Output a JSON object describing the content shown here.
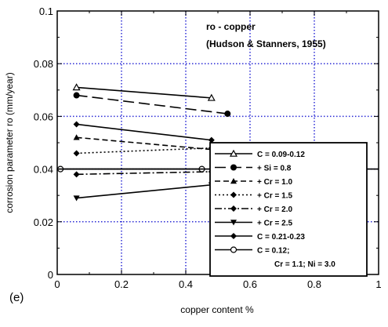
{
  "chart_data": {
    "type": "line",
    "panel_label": "(e)",
    "title_line1": "ro - copper",
    "title_line2": "(Hudson & Stanners, 1955)",
    "xlabel": "copper content %",
    "ylabel": "corrosion parameter ro (mm/year)",
    "xlim": [
      0,
      1
    ],
    "ylim": [
      0,
      0.1
    ],
    "x_ticks": [
      "0",
      "0.2",
      "0.4",
      "0.6",
      "0.8",
      "1"
    ],
    "y_ticks": [
      "0",
      "0.02",
      "0.04",
      "0.06",
      "0.08",
      "0.1"
    ],
    "grid": "dotted blue",
    "legend_position": "lower-right",
    "series": [
      {
        "name": "C = 0.09-0.12",
        "marker": "open-triangle",
        "dash": "solid",
        "x": [
          0.06,
          0.48
        ],
        "y": [
          0.071,
          0.067
        ]
      },
      {
        "name": "+Si = 0.8",
        "marker": "filled-circle",
        "dash": "longdash",
        "x": [
          0.06,
          0.53
        ],
        "y": [
          0.068,
          0.061
        ]
      },
      {
        "name": "+Cr = 1.0",
        "marker": "filled-triangle",
        "dash": "dash",
        "x": [
          0.06,
          0.52
        ],
        "y": [
          0.052,
          0.047
        ]
      },
      {
        "name": "+Cr = 1.5",
        "marker": "filled-diamond",
        "dash": "dot",
        "x": [
          0.06,
          0.48
        ],
        "y": [
          0.046,
          0.048
        ]
      },
      {
        "name": "+Cr = 2.0",
        "marker": "filled-diamond",
        "dash": "dashdot",
        "x": [
          0.06,
          0.48
        ],
        "y": [
          0.038,
          0.039
        ]
      },
      {
        "name": "+Cr = 2.5",
        "marker": "filled-down-triangle",
        "dash": "solid",
        "x": [
          0.06,
          0.48
        ],
        "y": [
          0.029,
          0.034
        ]
      },
      {
        "name": "C = 0.21-0.23",
        "marker": "filled-diamond",
        "dash": "solid",
        "x": [
          0.06,
          0.48
        ],
        "y": [
          0.057,
          0.051
        ]
      },
      {
        "name": "C = 0.12; Cr = 1.1; Ni = 3.0",
        "marker": "open-circle",
        "dash": "solid",
        "x": [
          0.01,
          0.45
        ],
        "y": [
          0.04,
          0.04
        ]
      }
    ],
    "legend_lines": [
      {
        "label": "C = 0.09-0.12",
        "series": 0
      },
      {
        "label": "+ Si = 0.8",
        "series": 1
      },
      {
        "label": "+ Cr = 1.0",
        "series": 2
      },
      {
        "label": "+ Cr = 1.5",
        "series": 3
      },
      {
        "label": "+ Cr = 2.0",
        "series": 4
      },
      {
        "label": "+ Cr = 2.5",
        "series": 5
      },
      {
        "label": "C = 0.21-0.23",
        "series": 6
      },
      {
        "label": "C = 0.12;",
        "series": 7
      },
      {
        "label": "Cr = 1.1; Ni = 3.0",
        "series": -1
      }
    ]
  }
}
